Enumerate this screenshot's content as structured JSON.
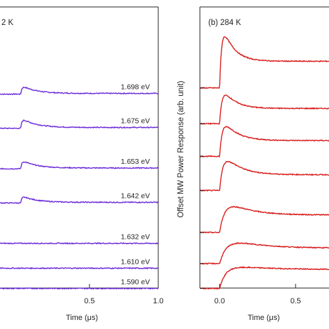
{
  "chart_data": [
    {
      "type": "line",
      "panel_label": "2 K",
      "xlabel": "Time (μs)",
      "ylabel": "",
      "xlim": [
        -0.15,
        1.0
      ],
      "x_ticks": [
        0.5,
        1.0
      ],
      "x_tick_labels": [
        "0.5",
        "1.0"
      ],
      "color": "#6a28d8",
      "series": [
        {
          "name": "1.698 eV",
          "offset": 6.35,
          "amplitude": 0.3,
          "rise": 0.01,
          "decay": 0.1,
          "tail": 0.08
        },
        {
          "name": "1.675 eV",
          "offset": 5.25,
          "amplitude": 0.35,
          "rise": 0.01,
          "decay": 0.1,
          "tail": 0.08
        },
        {
          "name": "1.653 eV",
          "offset": 3.95,
          "amplitude": 0.3,
          "rise": 0.01,
          "decay": 0.1,
          "tail": 0.08
        },
        {
          "name": "1.642 eV",
          "offset": 2.85,
          "amplitude": 0.25,
          "rise": 0.01,
          "decay": 0.1,
          "tail": 0.08
        },
        {
          "name": "1.632 eV",
          "offset": 1.55,
          "amplitude": 0.0,
          "rise": 0.01,
          "decay": 0.1,
          "tail": 0.0
        },
        {
          "name": "1.610 eV",
          "offset": 0.75,
          "amplitude": 0.0,
          "rise": 0.01,
          "decay": 0.1,
          "tail": 0.0
        },
        {
          "name": "1.590 eV",
          "offset": 0.1,
          "amplitude": 0.0,
          "rise": 0.01,
          "decay": 0.1,
          "tail": 0.0
        }
      ]
    },
    {
      "type": "line",
      "panel_label": "(b) 284 K",
      "xlabel": "Time (μs)",
      "ylabel": "Offset MW Power Response (arb. unit)",
      "xlim": [
        -0.13,
        0.72
      ],
      "x_ticks": [
        0.0,
        0.5
      ],
      "x_tick_labels": [
        "0.0",
        "0.5"
      ],
      "color": "#d81e1e",
      "series": [
        {
          "offset": 6.55,
          "amplitude": 2.45,
          "rise": 0.015,
          "decay": 0.07,
          "tail": 0.35
        },
        {
          "offset": 5.4,
          "amplitude": 1.4,
          "rise": 0.018,
          "decay": 0.075,
          "tail": 0.35
        },
        {
          "offset": 4.35,
          "amplitude": 1.45,
          "rise": 0.02,
          "decay": 0.085,
          "tail": 0.35
        },
        {
          "offset": 3.25,
          "amplitude": 1.45,
          "rise": 0.025,
          "decay": 0.1,
          "tail": 0.35
        },
        {
          "offset": 1.9,
          "amplitude": 1.25,
          "rise": 0.04,
          "decay": 0.14,
          "tail": 0.45
        },
        {
          "offset": 0.9,
          "amplitude": 0.9,
          "rise": 0.05,
          "decay": 0.2,
          "tail": 0.55
        },
        {
          "offset": 0.1,
          "amplitude": 0.75,
          "rise": 0.04,
          "decay": 0.3,
          "tail": 0.8
        }
      ]
    }
  ]
}
